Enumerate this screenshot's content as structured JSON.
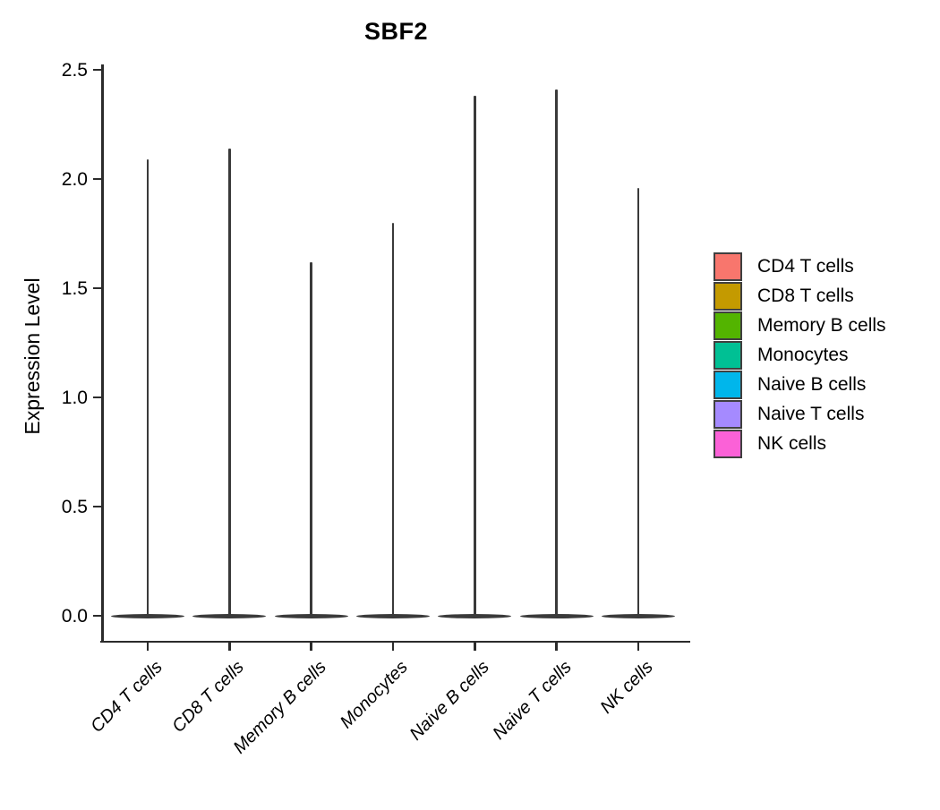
{
  "chart_data": {
    "type": "violin",
    "title": "SBF2",
    "ylabel": "Expression Level",
    "xlabel": "",
    "categories": [
      "CD4 T cells",
      "CD8 T cells",
      "Memory B cells",
      "Monocytes",
      "Naive B cells",
      "Naive T cells",
      "NK cells"
    ],
    "peak_values": [
      2.09,
      2.14,
      1.62,
      1.8,
      2.38,
      2.41,
      1.96
    ],
    "distribution_note": "density mass concentrated at 0 with a thin spike up to each group's maximum",
    "yticks": [
      "0.0",
      "0.5",
      "1.0",
      "1.5",
      "2.0",
      "2.5"
    ],
    "ytick_values": [
      0,
      0.5,
      1,
      1.5,
      2,
      2.5
    ],
    "ylim": [
      -0.12,
      2.55
    ],
    "grid": false,
    "legend_position": "right",
    "legend": [
      {
        "label": "CD4 T cells",
        "color": "#F8766D"
      },
      {
        "label": "CD8 T cells",
        "color": "#C49A00"
      },
      {
        "label": "Memory B cells",
        "color": "#53B400"
      },
      {
        "label": "Monocytes",
        "color": "#00C094"
      },
      {
        "label": "Naive B cells",
        "color": "#00B6EB"
      },
      {
        "label": "Naive T cells",
        "color": "#A58AFF"
      },
      {
        "label": "NK cells",
        "color": "#FB61D7"
      }
    ],
    "violin_outline_color": "#3A3A3A",
    "axis_color": "#2B2B2B",
    "text_color": "#000000"
  }
}
